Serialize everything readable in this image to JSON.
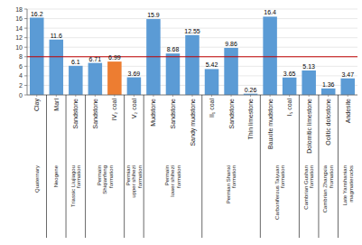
{
  "chart_data": {
    "type": "bar",
    "categories": [
      "Clay",
      "Marl",
      "Sandstone",
      "Sandstone",
      "IV₂ coal",
      "V₂ coal",
      "Mudstone",
      "Sandstone",
      "Sandy mudstone",
      "II₁ coal",
      "Sandstone",
      "Thin limestone",
      "Bauxite mudstone",
      "I₅ coal",
      "Dolomitic limestone",
      "Oolitic dolostone",
      "Andesite"
    ],
    "formations": [
      "Quaternary",
      "Neogene",
      "Triassic Liujiagou\nformation",
      "Permain\nShiqianfeng\nformation",
      "Permain\nShiqianfeng\nformation",
      "Permian\nupper shihezi\nformation",
      "Permain\nlower shihezi\nformation",
      "Permain\nlower shihezi\nformation",
      "Permain\nlower shihezi\nformation",
      "Permian Shanxi\nformation",
      "Permian Shanxi\nformation",
      "Permian Shanxi\nformation",
      "Carboniferous Taiyuan\nformation",
      "Carboniferous Taiyuan\nformation",
      "Cambrian Gushan\nformation",
      "Cambrian Zhangxia\nfromation",
      "Late Yanshanian\nmagmatierocks"
    ],
    "values": [
      16.2,
      11.6,
      6.1,
      6.71,
      6.99,
      3.69,
      15.9,
      8.68,
      12.55,
      5.42,
      9.86,
      0.26,
      16.4,
      3.65,
      5.13,
      1.36,
      3.47
    ],
    "colors": [
      "#5b9bd5",
      "#5b9bd5",
      "#5b9bd5",
      "#5b9bd5",
      "#ed7d31",
      "#5b9bd5",
      "#5b9bd5",
      "#5b9bd5",
      "#5b9bd5",
      "#5b9bd5",
      "#5b9bd5",
      "#5b9bd5",
      "#5b9bd5",
      "#5b9bd5",
      "#5b9bd5",
      "#5b9bd5",
      "#5b9bd5"
    ],
    "reference_line": {
      "value": 8.0,
      "color": "#c00000"
    },
    "ylim": [
      0,
      18.0
    ],
    "yticks": [
      0,
      2,
      4,
      6,
      8,
      10,
      12,
      14,
      16,
      18
    ],
    "grid": true,
    "data_labels": true
  }
}
